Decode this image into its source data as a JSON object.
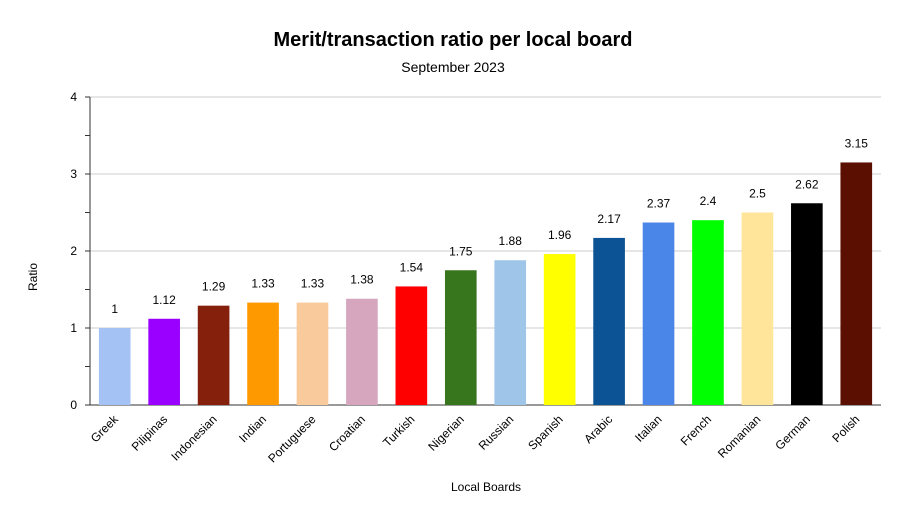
{
  "chart_data": {
    "type": "bar",
    "title": "Merit/transaction ratio per local board",
    "subtitle": "September 2023",
    "xlabel": "Local Boards",
    "ylabel": "Ratio",
    "ylim": [
      0,
      4
    ],
    "yticks": [
      0,
      1,
      2,
      3,
      4
    ],
    "grid": true,
    "legend": "none",
    "categories": [
      "Greek",
      "Pilipinas",
      "Indonesian",
      "Indian",
      "Portuguese",
      "Croatian",
      "Turkish",
      "Nigerian",
      "Russian",
      "Spanish",
      "Arabic",
      "Italian",
      "French",
      "Romanian",
      "German",
      "Polish"
    ],
    "values": [
      1,
      1.12,
      1.29,
      1.33,
      1.33,
      1.38,
      1.54,
      1.75,
      1.88,
      1.96,
      2.17,
      2.37,
      2.4,
      2.5,
      2.62,
      3.15
    ],
    "data_labels": [
      "1",
      "1.12",
      "1.29",
      "1.33",
      "1.33",
      "1.38",
      "1.54",
      "1.75",
      "1.88",
      "1.96",
      "2.17",
      "2.37",
      "2.4",
      "2.5",
      "2.62",
      "3.15"
    ],
    "colors": [
      "#a4c2f4",
      "#9900ff",
      "#85200c",
      "#ff9900",
      "#f9cb9c",
      "#d5a6bd",
      "#ff0000",
      "#38761d",
      "#9fc5e8",
      "#ffff00",
      "#0b5394",
      "#4a86e8",
      "#00ff00",
      "#ffe599",
      "#000000",
      "#5b0f00"
    ]
  }
}
